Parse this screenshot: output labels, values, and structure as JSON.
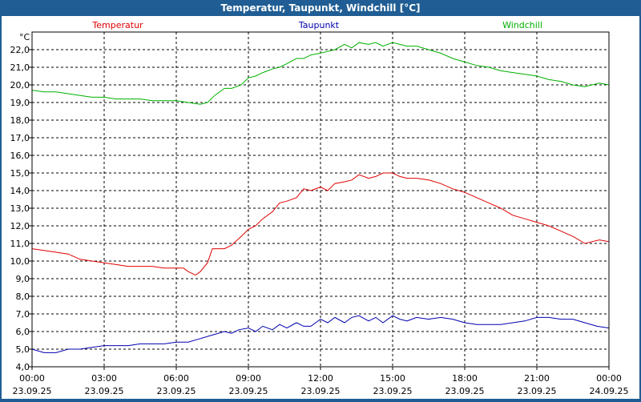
{
  "window": {
    "title": "Temperatur, Taupunkt, Windchill [°C]"
  },
  "chart_data": {
    "type": "line",
    "title": "Temperatur, Taupunkt, Windchill [°C]",
    "ylabel": "°C",
    "ylim": [
      4.0,
      23.0
    ],
    "yticks": [
      "4,0",
      "5,0",
      "6,0",
      "7,0",
      "8,0",
      "9,0",
      "10,0",
      "11,0",
      "12,0",
      "13,0",
      "14,0",
      "15,0",
      "16,0",
      "17,0",
      "18,0",
      "19,0",
      "20,0",
      "21,0",
      "22,0"
    ],
    "xlim": [
      0,
      24
    ],
    "xticks": [
      {
        "time": "00:00",
        "date": "23.09.25"
      },
      {
        "time": "03:00",
        "date": "23.09.25"
      },
      {
        "time": "06:00",
        "date": "23.09.25"
      },
      {
        "time": "09:00",
        "date": "23.09.25"
      },
      {
        "time": "12:00",
        "date": "23.09.25"
      },
      {
        "time": "15:00",
        "date": "23.09.25"
      },
      {
        "time": "18:00",
        "date": "23.09.25"
      },
      {
        "time": "21:00",
        "date": "23.09.25"
      },
      {
        "time": "00:00",
        "date": "24.09.25"
      }
    ],
    "grid": true,
    "legend_position": "top",
    "series": [
      {
        "name": "Temperatur",
        "color": "#e00000",
        "points": [
          [
            0.0,
            10.7
          ],
          [
            0.5,
            10.6
          ],
          [
            1.0,
            10.5
          ],
          [
            1.5,
            10.4
          ],
          [
            2.0,
            10.1
          ],
          [
            2.5,
            10.0
          ],
          [
            3.0,
            9.9
          ],
          [
            3.5,
            9.8
          ],
          [
            4.0,
            9.7
          ],
          [
            4.5,
            9.7
          ],
          [
            5.0,
            9.7
          ],
          [
            5.5,
            9.6
          ],
          [
            6.0,
            9.6
          ],
          [
            6.3,
            9.6
          ],
          [
            6.5,
            9.4
          ],
          [
            6.8,
            9.2
          ],
          [
            7.0,
            9.4
          ],
          [
            7.3,
            9.9
          ],
          [
            7.5,
            10.7
          ],
          [
            8.0,
            10.7
          ],
          [
            8.3,
            10.9
          ],
          [
            8.7,
            11.4
          ],
          [
            9.0,
            11.8
          ],
          [
            9.3,
            12.0
          ],
          [
            9.6,
            12.4
          ],
          [
            10.0,
            12.8
          ],
          [
            10.3,
            13.3
          ],
          [
            10.6,
            13.4
          ],
          [
            11.0,
            13.6
          ],
          [
            11.3,
            14.1
          ],
          [
            11.6,
            14.0
          ],
          [
            12.0,
            14.2
          ],
          [
            12.3,
            14.0
          ],
          [
            12.6,
            14.4
          ],
          [
            13.0,
            14.5
          ],
          [
            13.3,
            14.6
          ],
          [
            13.6,
            14.9
          ],
          [
            14.0,
            14.7
          ],
          [
            14.3,
            14.8
          ],
          [
            14.6,
            15.0
          ],
          [
            15.0,
            15.0
          ],
          [
            15.3,
            14.8
          ],
          [
            15.6,
            14.7
          ],
          [
            16.0,
            14.7
          ],
          [
            16.5,
            14.6
          ],
          [
            17.0,
            14.4
          ],
          [
            17.5,
            14.1
          ],
          [
            18.0,
            13.9
          ],
          [
            18.5,
            13.6
          ],
          [
            19.0,
            13.3
          ],
          [
            19.5,
            13.0
          ],
          [
            20.0,
            12.6
          ],
          [
            20.5,
            12.4
          ],
          [
            21.0,
            12.2
          ],
          [
            21.5,
            12.0
          ],
          [
            22.0,
            11.7
          ],
          [
            22.5,
            11.4
          ],
          [
            23.0,
            11.0
          ],
          [
            23.3,
            11.1
          ],
          [
            23.6,
            11.2
          ],
          [
            24.0,
            11.1
          ]
        ]
      },
      {
        "name": "Taupunkt",
        "color": "#0000b0",
        "points": [
          [
            0.0,
            5.0
          ],
          [
            0.5,
            4.8
          ],
          [
            1.0,
            4.8
          ],
          [
            1.5,
            5.0
          ],
          [
            2.0,
            5.0
          ],
          [
            2.5,
            5.1
          ],
          [
            3.0,
            5.2
          ],
          [
            3.5,
            5.2
          ],
          [
            4.0,
            5.2
          ],
          [
            4.5,
            5.3
          ],
          [
            5.0,
            5.3
          ],
          [
            5.5,
            5.3
          ],
          [
            6.0,
            5.4
          ],
          [
            6.5,
            5.4
          ],
          [
            7.0,
            5.6
          ],
          [
            7.5,
            5.8
          ],
          [
            8.0,
            6.0
          ],
          [
            8.3,
            5.9
          ],
          [
            8.6,
            6.1
          ],
          [
            9.0,
            6.2
          ],
          [
            9.3,
            6.0
          ],
          [
            9.6,
            6.3
          ],
          [
            10.0,
            6.1
          ],
          [
            10.3,
            6.4
          ],
          [
            10.6,
            6.2
          ],
          [
            11.0,
            6.5
          ],
          [
            11.3,
            6.3
          ],
          [
            11.6,
            6.3
          ],
          [
            12.0,
            6.7
          ],
          [
            12.3,
            6.5
          ],
          [
            12.6,
            6.8
          ],
          [
            13.0,
            6.5
          ],
          [
            13.3,
            6.8
          ],
          [
            13.6,
            6.9
          ],
          [
            14.0,
            6.6
          ],
          [
            14.3,
            6.8
          ],
          [
            14.6,
            6.5
          ],
          [
            15.0,
            6.9
          ],
          [
            15.3,
            6.7
          ],
          [
            15.6,
            6.6
          ],
          [
            16.0,
            6.8
          ],
          [
            16.5,
            6.7
          ],
          [
            17.0,
            6.8
          ],
          [
            17.5,
            6.7
          ],
          [
            18.0,
            6.5
          ],
          [
            18.5,
            6.4
          ],
          [
            19.0,
            6.4
          ],
          [
            19.5,
            6.4
          ],
          [
            20.0,
            6.5
          ],
          [
            20.5,
            6.6
          ],
          [
            21.0,
            6.8
          ],
          [
            21.5,
            6.8
          ],
          [
            22.0,
            6.7
          ],
          [
            22.5,
            6.7
          ],
          [
            23.0,
            6.5
          ],
          [
            23.5,
            6.3
          ],
          [
            24.0,
            6.2
          ]
        ]
      },
      {
        "name": "Windchill",
        "color": "#00b000",
        "points": [
          [
            0.0,
            19.7
          ],
          [
            0.5,
            19.6
          ],
          [
            1.0,
            19.6
          ],
          [
            1.5,
            19.5
          ],
          [
            2.0,
            19.4
          ],
          [
            2.5,
            19.3
          ],
          [
            3.0,
            19.3
          ],
          [
            3.5,
            19.2
          ],
          [
            4.0,
            19.2
          ],
          [
            4.5,
            19.2
          ],
          [
            5.0,
            19.1
          ],
          [
            5.5,
            19.1
          ],
          [
            6.0,
            19.1
          ],
          [
            6.5,
            19.0
          ],
          [
            7.0,
            18.9
          ],
          [
            7.3,
            19.0
          ],
          [
            7.6,
            19.4
          ],
          [
            8.0,
            19.8
          ],
          [
            8.3,
            19.8
          ],
          [
            8.7,
            20.0
          ],
          [
            9.0,
            20.4
          ],
          [
            9.3,
            20.5
          ],
          [
            9.6,
            20.7
          ],
          [
            10.0,
            20.9
          ],
          [
            10.3,
            21.0
          ],
          [
            10.6,
            21.2
          ],
          [
            11.0,
            21.5
          ],
          [
            11.3,
            21.5
          ],
          [
            11.6,
            21.7
          ],
          [
            12.0,
            21.8
          ],
          [
            12.3,
            21.9
          ],
          [
            12.6,
            22.0
          ],
          [
            13.0,
            22.3
          ],
          [
            13.3,
            22.1
          ],
          [
            13.6,
            22.4
          ],
          [
            14.0,
            22.3
          ],
          [
            14.3,
            22.4
          ],
          [
            14.6,
            22.2
          ],
          [
            15.0,
            22.4
          ],
          [
            15.3,
            22.3
          ],
          [
            15.6,
            22.2
          ],
          [
            16.0,
            22.2
          ],
          [
            16.5,
            22.0
          ],
          [
            17.0,
            21.8
          ],
          [
            17.5,
            21.5
          ],
          [
            18.0,
            21.3
          ],
          [
            18.5,
            21.1
          ],
          [
            19.0,
            21.0
          ],
          [
            19.5,
            20.8
          ],
          [
            20.0,
            20.7
          ],
          [
            20.5,
            20.6
          ],
          [
            21.0,
            20.5
          ],
          [
            21.5,
            20.3
          ],
          [
            22.0,
            20.2
          ],
          [
            22.5,
            20.0
          ],
          [
            23.0,
            19.9
          ],
          [
            23.3,
            20.0
          ],
          [
            23.6,
            20.1
          ],
          [
            24.0,
            20.0
          ]
        ]
      }
    ]
  }
}
